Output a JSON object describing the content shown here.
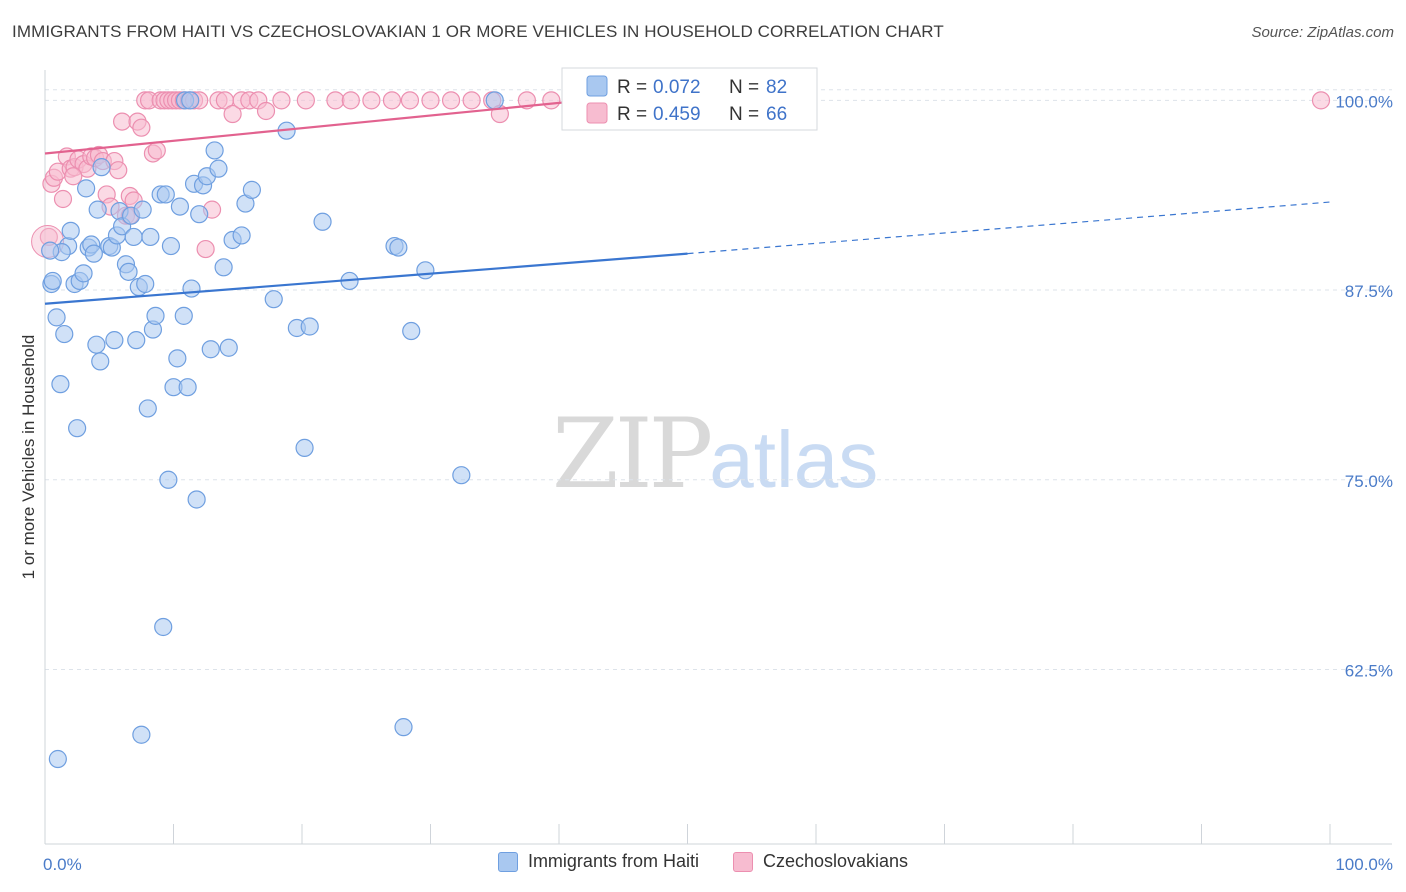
{
  "header": {
    "title": "IMMIGRANTS FROM HAITI VS CZECHOSLOVAKIAN 1 OR MORE VEHICLES IN HOUSEHOLD CORRELATION CHART",
    "source": "Source: ZipAtlas.com"
  },
  "watermark": {
    "zip": "ZIP",
    "atlas": "atlas"
  },
  "legend": {
    "haiti": {
      "r_label": "R =",
      "r_value": "0.072",
      "n_label": "N =",
      "n_value": "82"
    },
    "czech": {
      "r_label": "R =",
      "r_value": "0.459",
      "n_label": "N =",
      "n_value": "66"
    }
  },
  "bottom_legend": {
    "haiti": "Immigrants from Haiti",
    "czech": "Czechoslovakians"
  },
  "colors": {
    "haiti_fill": "#a9c8f0",
    "haiti_stroke": "#6f9fe0",
    "haiti_line": "#3a76d0",
    "czech_fill": "#f7bcd0",
    "czech_stroke": "#ec8fb0",
    "czech_line": "#e2628f",
    "grid": "#dde3ea",
    "axis_text": "#4a7bc8"
  },
  "chart_data": {
    "type": "scatter",
    "title": "IMMIGRANTS FROM HAITI VS CZECHOSLOVAKIAN 1 OR MORE VEHICLES IN HOUSEHOLD CORRELATION CHART",
    "xlabel": "",
    "ylabel": "1 or more Vehicles in Household",
    "xlim": [
      0,
      100
    ],
    "ylim": [
      51,
      102
    ],
    "x_tick_labels": [
      "0.0%",
      "100.0%"
    ],
    "y_ticks": [
      100,
      87.5,
      75,
      62.5
    ],
    "y_tick_labels": [
      "100.0%",
      "87.5%",
      "75.0%",
      "62.5%"
    ],
    "series": [
      {
        "name": "Immigrants from Haiti",
        "R": 0.072,
        "N": 82,
        "trend": {
          "x0": 0,
          "y0": 86.6,
          "x1": 50,
          "y1": 89.9,
          "dashed_to_x": 100,
          "dashed_to_y": 93.3
        },
        "points": [
          [
            0.5,
            87.9
          ],
          [
            0.6,
            88.1
          ],
          [
            0.9,
            85.7
          ],
          [
            1.2,
            81.3
          ],
          [
            1.5,
            84.6
          ],
          [
            1.8,
            90.4
          ],
          [
            2.0,
            91.4
          ],
          [
            2.3,
            87.9
          ],
          [
            2.5,
            78.4
          ],
          [
            2.7,
            88.1
          ],
          [
            3.0,
            88.6
          ],
          [
            3.2,
            94.2
          ],
          [
            3.4,
            90.3
          ],
          [
            3.6,
            90.5
          ],
          [
            3.8,
            89.9
          ],
          [
            4.0,
            83.9
          ],
          [
            4.1,
            92.8
          ],
          [
            4.3,
            82.8
          ],
          [
            4.4,
            95.6
          ],
          [
            5.0,
            90.4
          ],
          [
            5.2,
            90.3
          ],
          [
            5.4,
            84.2
          ],
          [
            5.6,
            91.1
          ],
          [
            5.8,
            92.7
          ],
          [
            6.0,
            91.7
          ],
          [
            6.3,
            89.2
          ],
          [
            6.5,
            88.7
          ],
          [
            6.7,
            92.4
          ],
          [
            6.9,
            91.0
          ],
          [
            7.1,
            84.2
          ],
          [
            7.3,
            87.7
          ],
          [
            7.6,
            92.8
          ],
          [
            7.8,
            87.9
          ],
          [
            8.0,
            79.7
          ],
          [
            8.2,
            91.0
          ],
          [
            8.4,
            84.9
          ],
          [
            8.6,
            85.8
          ],
          [
            9.0,
            93.8
          ],
          [
            9.2,
            65.3
          ],
          [
            9.4,
            93.8
          ],
          [
            9.6,
            75.0
          ],
          [
            9.8,
            90.4
          ],
          [
            10.0,
            81.1
          ],
          [
            10.3,
            83.0
          ],
          [
            10.5,
            93.0
          ],
          [
            10.8,
            85.8
          ],
          [
            11.1,
            81.1
          ],
          [
            11.4,
            87.6
          ],
          [
            11.6,
            94.5
          ],
          [
            11.8,
            73.7
          ],
          [
            12.0,
            92.5
          ],
          [
            12.3,
            94.4
          ],
          [
            12.6,
            95.0
          ],
          [
            12.9,
            83.6
          ],
          [
            13.2,
            96.7
          ],
          [
            13.5,
            95.5
          ],
          [
            13.9,
            89.0
          ],
          [
            14.3,
            83.7
          ],
          [
            14.6,
            90.8
          ],
          [
            15.3,
            91.1
          ],
          [
            15.6,
            93.2
          ],
          [
            16.1,
            94.1
          ],
          [
            17.8,
            86.9
          ],
          [
            18.8,
            98.0
          ],
          [
            19.6,
            85.0
          ],
          [
            20.2,
            77.1
          ],
          [
            20.6,
            85.1
          ],
          [
            21.6,
            92.0
          ],
          [
            23.7,
            88.1
          ],
          [
            27.2,
            90.4
          ],
          [
            27.5,
            90.3
          ],
          [
            27.9,
            58.7
          ],
          [
            28.5,
            84.8
          ],
          [
            29.6,
            88.8
          ],
          [
            32.4,
            75.3
          ],
          [
            35.0,
            100.0
          ],
          [
            1.0,
            56.6
          ],
          [
            7.5,
            58.2
          ],
          [
            10.9,
            100.0
          ],
          [
            1.3,
            90.0
          ],
          [
            0.4,
            90.1
          ],
          [
            11.3,
            100.0
          ]
        ]
      },
      {
        "name": "Czechoslovakians",
        "R": 0.459,
        "N": 66,
        "trend": {
          "x0": 0,
          "y0": 96.5,
          "x1": 42,
          "y1": 100.0
        },
        "points": [
          [
            0.3,
            91.0
          ],
          [
            0.5,
            94.5
          ],
          [
            0.7,
            94.9
          ],
          [
            1.0,
            95.3
          ],
          [
            1.4,
            93.5
          ],
          [
            1.7,
            96.3
          ],
          [
            2.0,
            95.5
          ],
          [
            2.3,
            95.6
          ],
          [
            2.6,
            96.1
          ],
          [
            3.0,
            95.8
          ],
          [
            3.3,
            95.5
          ],
          [
            3.6,
            96.3
          ],
          [
            3.9,
            96.2
          ],
          [
            4.2,
            96.4
          ],
          [
            4.5,
            96.0
          ],
          [
            4.8,
            93.8
          ],
          [
            5.1,
            93.0
          ],
          [
            5.4,
            96.0
          ],
          [
            5.7,
            95.4
          ],
          [
            6.0,
            98.6
          ],
          [
            6.3,
            92.4
          ],
          [
            6.6,
            93.7
          ],
          [
            6.9,
            93.4
          ],
          [
            7.2,
            98.6
          ],
          [
            7.5,
            98.2
          ],
          [
            7.8,
            100.0
          ],
          [
            8.1,
            100.0
          ],
          [
            8.4,
            96.5
          ],
          [
            8.7,
            96.7
          ],
          [
            9.0,
            100.0
          ],
          [
            9.3,
            100.0
          ],
          [
            9.6,
            100.0
          ],
          [
            9.9,
            100.0
          ],
          [
            10.2,
            100.0
          ],
          [
            10.5,
            100.0
          ],
          [
            10.8,
            100.0
          ],
          [
            11.2,
            100.0
          ],
          [
            11.6,
            100.0
          ],
          [
            12.0,
            100.0
          ],
          [
            12.5,
            90.2
          ],
          [
            13.0,
            92.8
          ],
          [
            13.5,
            100.0
          ],
          [
            14.0,
            100.0
          ],
          [
            14.6,
            99.1
          ],
          [
            15.3,
            100.0
          ],
          [
            15.9,
            100.0
          ],
          [
            16.6,
            100.0
          ],
          [
            17.2,
            99.3
          ],
          [
            18.4,
            100.0
          ],
          [
            20.3,
            100.0
          ],
          [
            22.6,
            100.0
          ],
          [
            23.8,
            100.0
          ],
          [
            25.4,
            100.0
          ],
          [
            27.0,
            100.0
          ],
          [
            28.4,
            100.0
          ],
          [
            30.0,
            100.0
          ],
          [
            31.6,
            100.0
          ],
          [
            33.2,
            100.0
          ],
          [
            34.8,
            100.0
          ],
          [
            35.4,
            99.1
          ],
          [
            37.5,
            100.0
          ],
          [
            39.4,
            100.0
          ],
          [
            41.0,
            100.0
          ],
          [
            99.3,
            100.0
          ],
          [
            2.2,
            95.0
          ],
          [
            6.6,
            92.4
          ]
        ]
      }
    ]
  }
}
